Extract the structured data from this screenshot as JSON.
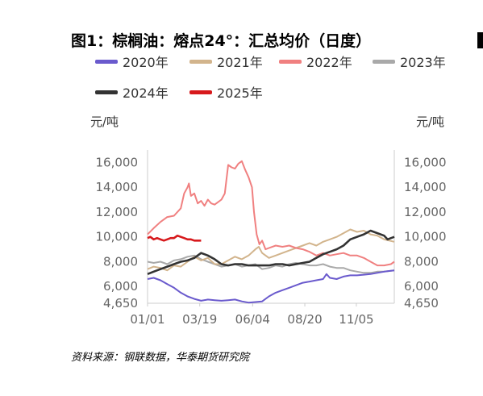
{
  "chart_data": {
    "type": "line",
    "title": "图1：棕榈油：熔点24°：汇总均价（日度）",
    "y_unit_left": "元/吨",
    "y_unit_right": "元/吨",
    "ylim": [
      4650,
      17000
    ],
    "yticks": [
      4650,
      6000,
      8000,
      10000,
      12000,
      14000,
      16000
    ],
    "ytick_labels": [
      "4,650",
      "6,000",
      "8,000",
      "10,000",
      "12,000",
      "14,000",
      "16,000"
    ],
    "xlim": [
      1,
      365
    ],
    "xticks": [
      {
        "day": 1,
        "label": "01/01"
      },
      {
        "day": 78,
        "label": "03/19"
      },
      {
        "day": 156,
        "label": "06/04"
      },
      {
        "day": 233,
        "label": "08/20"
      },
      {
        "day": 309,
        "label": "11/05"
      }
    ],
    "x_unit": "day of year",
    "grid": false,
    "legend_position": "top",
    "series": [
      {
        "name": "2020年",
        "color": "#6a5acd",
        "points": [
          [
            1,
            6600
          ],
          [
            10,
            6700
          ],
          [
            20,
            6500
          ],
          [
            30,
            6200
          ],
          [
            40,
            5900
          ],
          [
            50,
            5500
          ],
          [
            60,
            5200
          ],
          [
            70,
            5000
          ],
          [
            80,
            4850
          ],
          [
            90,
            4950
          ],
          [
            100,
            4900
          ],
          [
            110,
            4850
          ],
          [
            120,
            4900
          ],
          [
            130,
            4950
          ],
          [
            140,
            4800
          ],
          [
            150,
            4700
          ],
          [
            160,
            4750
          ],
          [
            170,
            4800
          ],
          [
            180,
            5200
          ],
          [
            190,
            5500
          ],
          [
            200,
            5700
          ],
          [
            210,
            5900
          ],
          [
            220,
            6100
          ],
          [
            230,
            6300
          ],
          [
            240,
            6400
          ],
          [
            250,
            6500
          ],
          [
            260,
            6600
          ],
          [
            265,
            7000
          ],
          [
            270,
            6700
          ],
          [
            280,
            6600
          ],
          [
            290,
            6800
          ],
          [
            300,
            6900
          ],
          [
            310,
            6900
          ],
          [
            320,
            6950
          ],
          [
            330,
            7000
          ],
          [
            340,
            7100
          ],
          [
            350,
            7200
          ],
          [
            365,
            7300
          ]
        ]
      },
      {
        "name": "2021年",
        "color": "#d2b48c",
        "points": [
          [
            1,
            7400
          ],
          [
            10,
            7600
          ],
          [
            20,
            7500
          ],
          [
            30,
            7300
          ],
          [
            40,
            7700
          ],
          [
            50,
            7600
          ],
          [
            60,
            8000
          ],
          [
            70,
            8400
          ],
          [
            80,
            8100
          ],
          [
            90,
            8300
          ],
          [
            100,
            7800
          ],
          [
            110,
            7800
          ],
          [
            120,
            8100
          ],
          [
            130,
            8400
          ],
          [
            140,
            8200
          ],
          [
            150,
            8500
          ],
          [
            160,
            9000
          ],
          [
            165,
            9200
          ],
          [
            170,
            8700
          ],
          [
            180,
            8300
          ],
          [
            190,
            8500
          ],
          [
            200,
            8700
          ],
          [
            210,
            8900
          ],
          [
            220,
            9100
          ],
          [
            230,
            9300
          ],
          [
            240,
            9500
          ],
          [
            250,
            9300
          ],
          [
            260,
            9600
          ],
          [
            270,
            9800
          ],
          [
            280,
            10000
          ],
          [
            290,
            10300
          ],
          [
            300,
            10600
          ],
          [
            310,
            10400
          ],
          [
            320,
            10500
          ],
          [
            330,
            10200
          ],
          [
            340,
            10100
          ],
          [
            350,
            9800
          ],
          [
            365,
            9600
          ]
        ]
      },
      {
        "name": "2022年",
        "color": "#f08080",
        "points": [
          [
            1,
            10200
          ],
          [
            10,
            10700
          ],
          [
            20,
            11200
          ],
          [
            30,
            11600
          ],
          [
            40,
            11700
          ],
          [
            50,
            12300
          ],
          [
            55,
            13500
          ],
          [
            60,
            14000
          ],
          [
            62,
            14300
          ],
          [
            65,
            13300
          ],
          [
            70,
            13500
          ],
          [
            75,
            12700
          ],
          [
            80,
            12900
          ],
          [
            85,
            12500
          ],
          [
            90,
            13000
          ],
          [
            95,
            12700
          ],
          [
            100,
            12600
          ],
          [
            110,
            13000
          ],
          [
            115,
            13500
          ],
          [
            120,
            15800
          ],
          [
            125,
            15600
          ],
          [
            130,
            15500
          ],
          [
            135,
            15900
          ],
          [
            140,
            16100
          ],
          [
            145,
            15400
          ],
          [
            150,
            14800
          ],
          [
            155,
            14000
          ],
          [
            158,
            12000
          ],
          [
            162,
            10200
          ],
          [
            166,
            9400
          ],
          [
            170,
            9700
          ],
          [
            175,
            9000
          ],
          [
            180,
            9100
          ],
          [
            190,
            9300
          ],
          [
            200,
            9200
          ],
          [
            210,
            9300
          ],
          [
            220,
            9100
          ],
          [
            230,
            9000
          ],
          [
            240,
            8800
          ],
          [
            250,
            8500
          ],
          [
            260,
            8700
          ],
          [
            270,
            8500
          ],
          [
            280,
            8600
          ],
          [
            290,
            8700
          ],
          [
            300,
            8500
          ],
          [
            310,
            8500
          ],
          [
            320,
            8300
          ],
          [
            330,
            8000
          ],
          [
            340,
            7700
          ],
          [
            350,
            7700
          ],
          [
            360,
            7800
          ],
          [
            365,
            8000
          ]
        ]
      },
      {
        "name": "2023年",
        "color": "#a9a9a9",
        "points": [
          [
            1,
            8000
          ],
          [
            10,
            7900
          ],
          [
            20,
            8000
          ],
          [
            30,
            7800
          ],
          [
            40,
            8100
          ],
          [
            50,
            8200
          ],
          [
            60,
            8400
          ],
          [
            70,
            8500
          ],
          [
            80,
            8200
          ],
          [
            90,
            8000
          ],
          [
            100,
            7800
          ],
          [
            110,
            7600
          ],
          [
            120,
            7700
          ],
          [
            130,
            7800
          ],
          [
            140,
            7600
          ],
          [
            150,
            7700
          ],
          [
            160,
            7800
          ],
          [
            170,
            7400
          ],
          [
            180,
            7500
          ],
          [
            190,
            7700
          ],
          [
            200,
            7600
          ],
          [
            210,
            7800
          ],
          [
            220,
            7900
          ],
          [
            230,
            7800
          ],
          [
            240,
            7700
          ],
          [
            250,
            7700
          ],
          [
            260,
            7800
          ],
          [
            270,
            7600
          ],
          [
            280,
            7500
          ],
          [
            290,
            7500
          ],
          [
            300,
            7300
          ],
          [
            310,
            7200
          ],
          [
            320,
            7100
          ],
          [
            330,
            7100
          ],
          [
            340,
            7200
          ],
          [
            350,
            7200
          ],
          [
            365,
            7300
          ]
        ]
      },
      {
        "name": "2024年",
        "color": "#333333",
        "points": [
          [
            1,
            7000
          ],
          [
            10,
            7200
          ],
          [
            20,
            7400
          ],
          [
            30,
            7600
          ],
          [
            40,
            7800
          ],
          [
            50,
            8000
          ],
          [
            60,
            8100
          ],
          [
            70,
            8300
          ],
          [
            80,
            8700
          ],
          [
            90,
            8500
          ],
          [
            100,
            8200
          ],
          [
            110,
            7800
          ],
          [
            120,
            7700
          ],
          [
            130,
            7800
          ],
          [
            140,
            7800
          ],
          [
            150,
            7700
          ],
          [
            160,
            7700
          ],
          [
            170,
            7700
          ],
          [
            180,
            7700
          ],
          [
            190,
            7800
          ],
          [
            200,
            7800
          ],
          [
            210,
            7700
          ],
          [
            220,
            7800
          ],
          [
            230,
            7900
          ],
          [
            240,
            8000
          ],
          [
            250,
            8300
          ],
          [
            260,
            8600
          ],
          [
            270,
            8800
          ],
          [
            280,
            9000
          ],
          [
            290,
            9300
          ],
          [
            300,
            9800
          ],
          [
            310,
            10000
          ],
          [
            320,
            10200
          ],
          [
            330,
            10500
          ],
          [
            340,
            10300
          ],
          [
            350,
            10100
          ],
          [
            355,
            9800
          ],
          [
            365,
            10000
          ]
        ]
      },
      {
        "name": "2025年",
        "color": "#d7191c",
        "points": [
          [
            1,
            9900
          ],
          [
            5,
            10000
          ],
          [
            10,
            9800
          ],
          [
            15,
            9900
          ],
          [
            20,
            9800
          ],
          [
            25,
            9700
          ],
          [
            30,
            9800
          ],
          [
            35,
            9900
          ],
          [
            40,
            9900
          ],
          [
            45,
            10100
          ],
          [
            50,
            10000
          ],
          [
            55,
            9900
          ],
          [
            60,
            9800
          ],
          [
            65,
            9800
          ],
          [
            70,
            9700
          ],
          [
            75,
            9700
          ],
          [
            80,
            9700
          ]
        ]
      }
    ]
  },
  "source_note": "资料来源：钢联数据，华泰期货研究院"
}
